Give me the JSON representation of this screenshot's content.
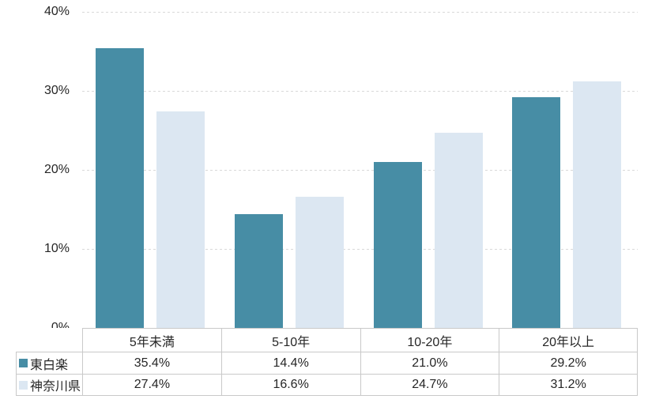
{
  "chart_data": {
    "type": "bar",
    "title": "",
    "xlabel": "",
    "ylabel": "",
    "categories": [
      "5年未満",
      "5-10年",
      "10-20年",
      "20年以上"
    ],
    "series": [
      {
        "name": "東白楽",
        "color": "#478DA5",
        "values": [
          35.4,
          14.4,
          21.0,
          29.2
        ],
        "labels": [
          "35.4%",
          "14.4%",
          "21.0%",
          "29.2%"
        ]
      },
      {
        "name": "神奈川県",
        "color": "#DCE7F2",
        "values": [
          27.4,
          16.6,
          24.7,
          31.2
        ],
        "labels": [
          "27.4%",
          "16.6%",
          "24.7%",
          "31.2%"
        ]
      }
    ],
    "ylim": [
      0,
      40
    ],
    "yticks": [
      0,
      10,
      20,
      30,
      40
    ],
    "ytick_labels": [
      "0%",
      "10%",
      "20%",
      "30%",
      "40%"
    ],
    "grid": true,
    "gridline_color": "#D9D9D9",
    "legend_position": "data-table-left"
  },
  "styles": {
    "bar_color_series1": "#478DA5",
    "bar_color_series2": "#DCE7F2",
    "text_color": "#262626",
    "table_border_color": "#C9C9C9",
    "background": "#FFFFFF"
  }
}
